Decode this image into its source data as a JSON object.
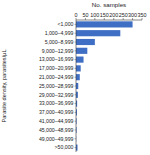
{
  "chart_data": {
    "type": "bar",
    "orientation": "horizontal",
    "xlabel": "No. samples",
    "ylabel": "Parasite density, parasites/µL",
    "categories": [
      "<1,000",
      "1,000–4,999",
      "5,000–8,999",
      "9,000–12,999",
      "13,000–16,999",
      "17,000–20,999",
      "21,000–24,999",
      "25,000–28,999",
      "29,000–32,999",
      "33,000–36,999",
      "37,000–40,999",
      "41,000–44,999",
      "45,000–48,999",
      "49,000–49,999",
      ">50,000"
    ],
    "values": [
      300,
      235,
      100,
      60,
      40,
      25,
      20,
      12,
      10,
      6,
      5,
      3,
      3,
      1,
      8
    ],
    "color": "#3f6fc4",
    "xlim": [
      0,
      350
    ],
    "xticks": [
      0,
      50,
      100,
      150,
      200,
      250,
      300,
      350
    ],
    "grid": false
  }
}
